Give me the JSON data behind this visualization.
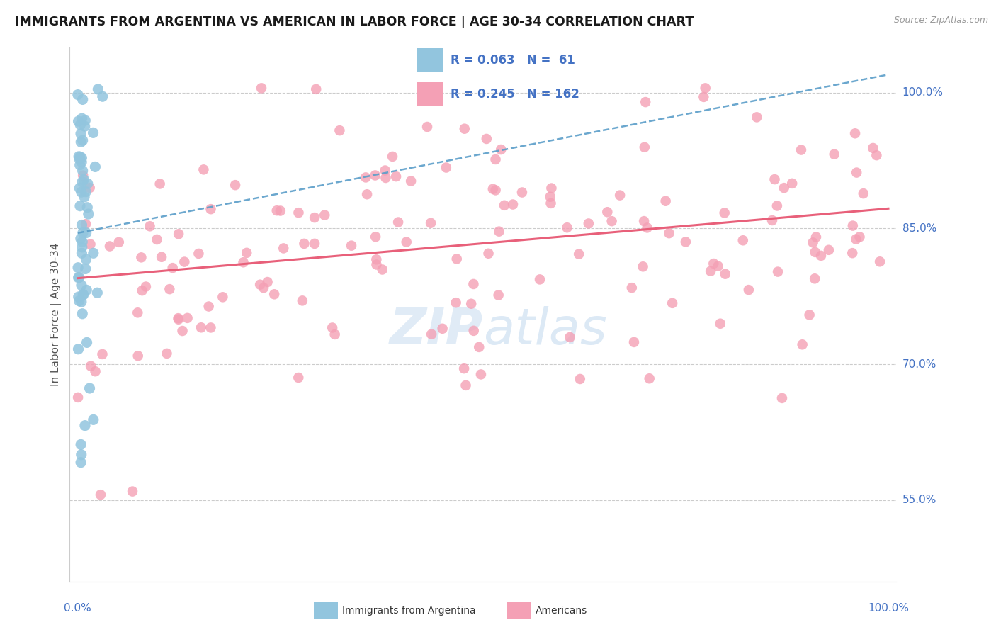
{
  "title": "IMMIGRANTS FROM ARGENTINA VS AMERICAN IN LABOR FORCE | AGE 30-34 CORRELATION CHART",
  "source": "Source: ZipAtlas.com",
  "ylabel": "In Labor Force | Age 30-34",
  "blue_R": 0.063,
  "blue_N": 61,
  "pink_R": 0.245,
  "pink_N": 162,
  "blue_color": "#92C5DE",
  "pink_color": "#F4A0B5",
  "blue_line_color": "#5B9EC9",
  "pink_line_color": "#E8607A",
  "legend_text_color": "#4472C4",
  "watermark_color": "#C8DCF0",
  "title_color": "#1A1A1A",
  "axis_label_color": "#4472C4",
  "background_color": "#FFFFFF",
  "grid_color": "#CCCCCC",
  "ytick_values": [
    0.55,
    0.7,
    0.85,
    1.0
  ],
  "ytick_labels": [
    "55.0%",
    "70.0%",
    "85.0%",
    "100.0%"
  ],
  "ylim_min": 0.46,
  "ylim_max": 1.05,
  "xlim_min": -0.01,
  "xlim_max": 1.01,
  "blue_trend_x0": 0.0,
  "blue_trend_x1": 1.0,
  "blue_trend_y0": 0.845,
  "blue_trend_y1": 1.02,
  "pink_trend_x0": 0.0,
  "pink_trend_x1": 1.0,
  "pink_trend_y0": 0.795,
  "pink_trend_y1": 0.872
}
